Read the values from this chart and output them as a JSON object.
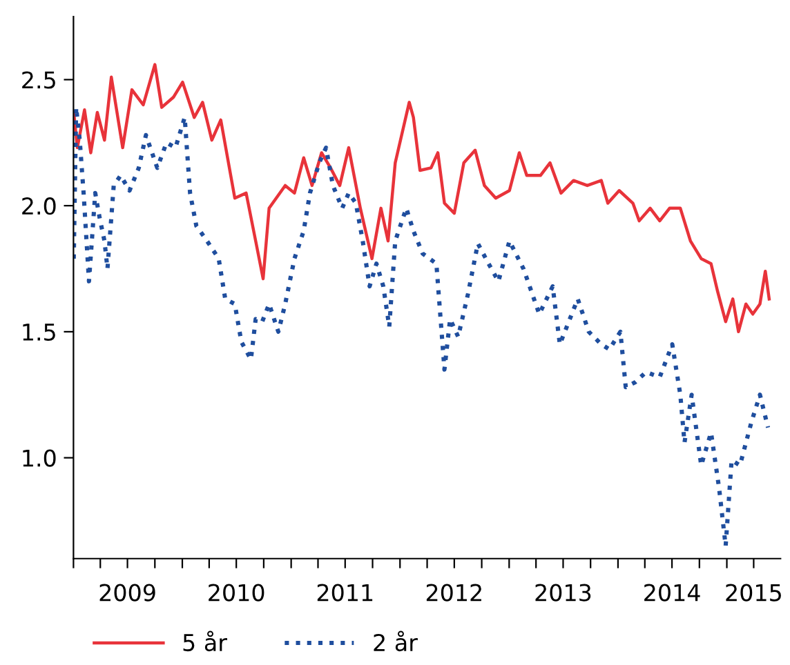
{
  "chart_data": {
    "type": "line",
    "xlim": [
      "2009-01-01",
      "2015-06-30"
    ],
    "xticks": [
      {
        "value": "2009-01-01",
        "label": null
      },
      {
        "value": "2009-04-01",
        "label": null
      },
      {
        "value": "2009-07-01",
        "label": "2009"
      },
      {
        "value": "2009-10-01",
        "label": null
      },
      {
        "value": "2010-01-01",
        "label": null
      },
      {
        "value": "2010-04-01",
        "label": null
      },
      {
        "value": "2010-07-01",
        "label": "2010"
      },
      {
        "value": "2010-10-01",
        "label": null
      },
      {
        "value": "2011-01-01",
        "label": null
      },
      {
        "value": "2011-04-01",
        "label": null
      },
      {
        "value": "2011-07-01",
        "label": "2011"
      },
      {
        "value": "2011-10-01",
        "label": null
      },
      {
        "value": "2012-01-01",
        "label": null
      },
      {
        "value": "2012-04-01",
        "label": null
      },
      {
        "value": "2012-07-01",
        "label": "2012"
      },
      {
        "value": "2012-10-01",
        "label": null
      },
      {
        "value": "2013-01-01",
        "label": null
      },
      {
        "value": "2013-04-01",
        "label": null
      },
      {
        "value": "2013-07-01",
        "label": "2013"
      },
      {
        "value": "2013-10-01",
        "label": null
      },
      {
        "value": "2014-01-01",
        "label": null
      },
      {
        "value": "2014-04-01",
        "label": null
      },
      {
        "value": "2014-07-01",
        "label": "2014"
      },
      {
        "value": "2014-10-01",
        "label": null
      },
      {
        "value": "2015-01-01",
        "label": null
      },
      {
        "value": "2015-04-01",
        "label": "2015"
      }
    ],
    "ylim": [
      0.6,
      2.75
    ],
    "yticks": [
      {
        "value": 1,
        "label": "1.0"
      },
      1.5,
      {
        "value": 2,
        "label": "2.0"
      },
      2.5
    ],
    "grid": false,
    "legend": "bottom",
    "marker": "none",
    "series": [
      {
        "name": "5 år",
        "color": "#e8333a",
        "line_style": "solid",
        "x": [
          "2009-01-02",
          "2009-01-14",
          "2009-02-07",
          "2009-02-28",
          "2009-03-22",
          "2009-04-15",
          "2009-05-08",
          "2009-06-15",
          "2009-07-16",
          "2009-08-23",
          "2009-10-01",
          "2009-10-24",
          "2009-12-02",
          "2010-01-02",
          "2010-02-10",
          "2010-03-10",
          "2010-04-10",
          "2010-05-10",
          "2010-06-26",
          "2010-08-03",
          "2010-09-04",
          "2010-09-29",
          "2010-10-19",
          "2010-12-12",
          "2011-01-12",
          "2011-02-12",
          "2011-03-12",
          "2011-04-13",
          "2011-05-13",
          "2011-06-13",
          "2011-07-13",
          "2011-08-21",
          "2011-09-29",
          "2011-10-29",
          "2011-11-22",
          "2011-12-16",
          "2012-02-01",
          "2012-02-15",
          "2012-03-08",
          "2012-04-14",
          "2012-05-07",
          "2012-05-29",
          "2012-07-01",
          "2012-08-02",
          "2012-09-09",
          "2012-10-10",
          "2012-11-17",
          "2013-01-02",
          "2013-02-04",
          "2013-03-01",
          "2013-04-16",
          "2013-05-18",
          "2013-06-24",
          "2013-08-05",
          "2013-09-20",
          "2013-11-06",
          "2013-11-28",
          "2014-01-05",
          "2014-02-20",
          "2014-03-13",
          "2014-04-19",
          "2014-05-21",
          "2014-06-23",
          "2014-07-29",
          "2014-09-01",
          "2014-10-07",
          "2014-11-09",
          "2014-12-01",
          "2014-12-28",
          "2015-01-21",
          "2015-02-09",
          "2015-03-06",
          "2015-03-29",
          "2015-04-22",
          "2015-05-10",
          "2015-05-23"
        ],
        "values": [
          2.37,
          2.23,
          2.38,
          2.21,
          2.37,
          2.26,
          2.51,
          2.23,
          2.46,
          2.4,
          2.56,
          2.39,
          2.43,
          2.49,
          2.35,
          2.41,
          2.26,
          2.34,
          2.03,
          2.05,
          1.86,
          1.71,
          1.99,
          2.08,
          2.05,
          2.19,
          2.08,
          2.21,
          2.15,
          2.08,
          2.23,
          1.99,
          1.79,
          1.99,
          1.86,
          2.17,
          2.41,
          2.35,
          2.14,
          2.15,
          2.21,
          2.01,
          1.97,
          2.17,
          2.22,
          2.08,
          2.03,
          2.06,
          2.21,
          2.12,
          2.12,
          2.17,
          2.05,
          2.1,
          2.08,
          2.1,
          2.01,
          2.06,
          2.01,
          1.94,
          1.99,
          1.94,
          1.99,
          1.99,
          1.86,
          1.79,
          1.77,
          1.66,
          1.54,
          1.63,
          1.5,
          1.61,
          1.57,
          1.61,
          1.74,
          1.63
        ]
      },
      {
        "name": "2 år",
        "color": "#1f4e9e",
        "line_style": "dotted",
        "x": [
          "2009-01-02",
          "2009-01-10",
          "2009-01-22",
          "2009-02-04",
          "2009-02-22",
          "2009-03-15",
          "2009-03-30",
          "2009-04-15",
          "2009-04-25",
          "2009-05-16",
          "2009-06-08",
          "2009-07-08",
          "2009-08-08",
          "2009-09-01",
          "2009-10-09",
          "2009-11-09",
          "2009-12-09",
          "2010-01-09",
          "2010-01-27",
          "2010-02-17",
          "2010-03-25",
          "2010-05-03",
          "2010-05-25",
          "2010-06-26",
          "2010-07-18",
          "2010-08-19",
          "2010-09-04",
          "2010-09-26",
          "2010-10-19",
          "2010-11-19",
          "2010-12-12",
          "2011-01-12",
          "2011-02-12",
          "2011-03-05",
          "2011-04-05",
          "2011-04-28",
          "2011-05-21",
          "2011-06-21",
          "2011-07-13",
          "2011-08-06",
          "2011-08-29",
          "2011-09-21",
          "2011-10-14",
          "2011-11-06",
          "2011-11-26",
          "2011-12-16",
          "2012-01-22",
          "2012-02-15",
          "2012-03-17",
          "2012-05-02",
          "2012-05-29",
          "2012-06-17",
          "2012-07-14",
          "2012-08-16",
          "2012-09-18",
          "2012-10-24",
          "2012-11-26",
          "2013-01-02",
          "2013-02-18",
          "2013-04-12",
          "2013-05-27",
          "2013-06-20",
          "2013-08-19",
          "2013-09-25",
          "2013-11-06",
          "2013-12-03",
          "2014-01-09",
          "2014-01-27",
          "2014-02-28",
          "2014-04-05",
          "2014-05-21",
          "2014-07-02",
          "2014-07-29",
          "2014-08-12",
          "2014-09-05",
          "2014-10-07",
          "2014-11-09",
          "2014-12-06",
          "2014-12-28",
          "2015-01-17",
          "2015-02-14",
          "2015-03-24",
          "2015-04-22",
          "2015-05-19"
        ],
        "values": [
          1.79,
          2.39,
          2.26,
          2.05,
          1.7,
          2.05,
          1.95,
          1.86,
          1.75,
          2.08,
          2.12,
          2.06,
          2.15,
          2.28,
          2.15,
          2.25,
          2.23,
          2.35,
          2.05,
          1.92,
          1.86,
          1.79,
          1.63,
          1.61,
          1.46,
          1.39,
          1.55,
          1.54,
          1.61,
          1.5,
          1.61,
          1.79,
          1.9,
          2.05,
          2.17,
          2.23,
          2.08,
          1.99,
          2.05,
          2.01,
          1.86,
          1.68,
          1.77,
          1.68,
          1.52,
          1.86,
          1.99,
          1.9,
          1.81,
          1.77,
          1.35,
          1.55,
          1.48,
          1.65,
          1.85,
          1.77,
          1.7,
          1.86,
          1.75,
          1.57,
          1.68,
          1.45,
          1.63,
          1.5,
          1.45,
          1.43,
          1.5,
          1.28,
          1.3,
          1.34,
          1.32,
          1.45,
          1.25,
          1.06,
          1.25,
          0.97,
          1.1,
          0.88,
          0.65,
          0.99,
          0.97,
          1.14,
          1.25,
          1.12
        ]
      }
    ]
  }
}
